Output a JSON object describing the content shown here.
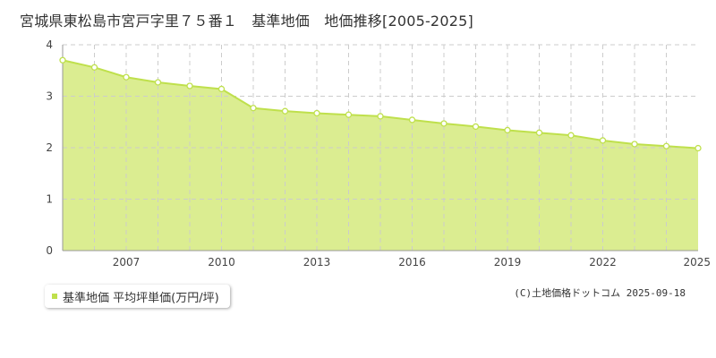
{
  "chart_data": {
    "type": "area",
    "title": "宮城県東松島市宮戸字里７５番１　基準地価　地価推移[2005-2025]",
    "x": [
      2005,
      2006,
      2007,
      2008,
      2009,
      2010,
      2011,
      2012,
      2013,
      2014,
      2015,
      2016,
      2017,
      2018,
      2019,
      2020,
      2021,
      2022,
      2023,
      2024,
      2025
    ],
    "series": [
      {
        "name": "基準地価 平均坪単価(万円/坪)",
        "values": [
          3.7,
          3.56,
          3.37,
          3.27,
          3.2,
          3.14,
          2.77,
          2.71,
          2.67,
          2.64,
          2.61,
          2.54,
          2.47,
          2.41,
          2.34,
          2.29,
          2.24,
          2.14,
          2.07,
          2.03,
          1.99
        ]
      }
    ],
    "xlim": [
      2005,
      2025
    ],
    "ylim": [
      0,
      4
    ],
    "x_tick_labels": [
      "2007",
      "2010",
      "2013",
      "2016",
      "2019",
      "2022",
      "2025"
    ],
    "y_tick_labels": [
      "0",
      "1",
      "2",
      "3",
      "4"
    ],
    "grid": true,
    "legend_position": "bottom-left",
    "colors": {
      "fill": "#dbed91",
      "line": "#bfe04c",
      "marker_fill": "#ffffff",
      "grid": "#cccccc",
      "axis": "#999999",
      "plot_background": "#ffffff"
    }
  },
  "legend": {
    "label": "基準地価 平均坪単価(万円/坪)"
  },
  "copyright": "(C)土地価格ドットコム 2025-09-18"
}
